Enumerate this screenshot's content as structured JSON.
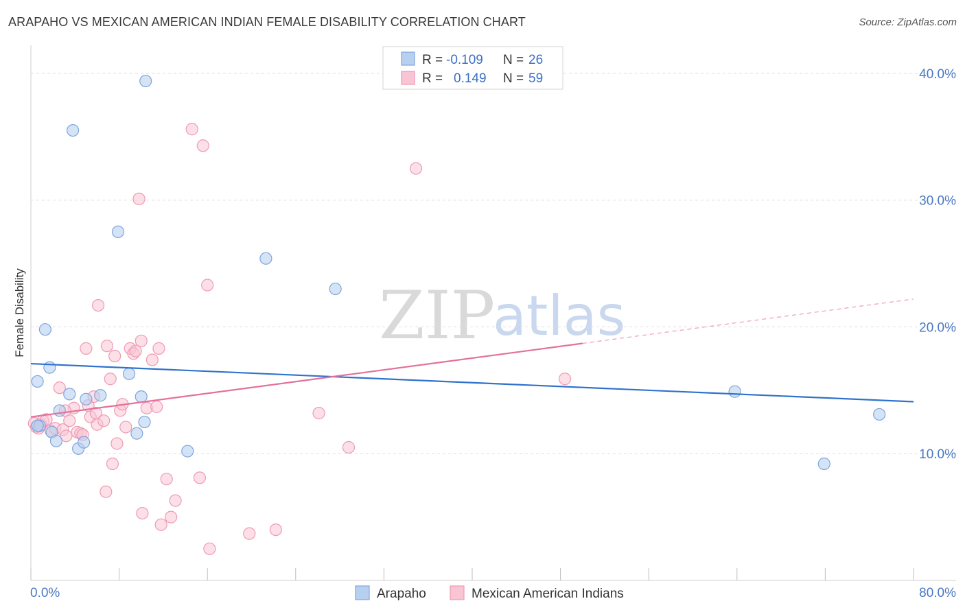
{
  "title": "ARAPAHO VS MEXICAN AMERICAN INDIAN FEMALE DISABILITY CORRELATION CHART",
  "source": "Source: ZipAtlas.com",
  "watermark": {
    "zip": "ZIP",
    "atlas": "atlas"
  },
  "colors": {
    "arapaho_fill": "#b8d0f0",
    "arapaho_stroke": "#7fa5dc",
    "arapaho_line": "#2f72cc",
    "mexican_fill": "#f9c4d4",
    "mexican_stroke": "#ee9ab5",
    "mexican_line": "#e4709a",
    "grid": "#dedede",
    "tick_text": "#4a78c2"
  },
  "legend": {
    "rows": [
      {
        "r_label": "R =",
        "r_value": "-0.109",
        "n_label": "N =",
        "n_value": "26"
      },
      {
        "r_label": "R =",
        "r_value": "0.149",
        "n_label": "N =",
        "n_value": "59"
      }
    ]
  },
  "chart_data": {
    "type": "scatter",
    "title": "ARAPAHO VS MEXICAN AMERICAN INDIAN FEMALE DISABILITY CORRELATION CHART",
    "xlabel": "",
    "ylabel": "Female Disability",
    "xlim": [
      0,
      80
    ],
    "ylim": [
      0,
      42
    ],
    "x_tick_labels": [
      "0.0%",
      "80.0%"
    ],
    "y_ticks": [
      10,
      20,
      30,
      40
    ],
    "y_tick_labels": [
      "10.0%",
      "20.0%",
      "30.0%",
      "40.0%"
    ],
    "grid": true,
    "legend_position": "top-center",
    "series": [
      {
        "name": "Arapaho",
        "r": -0.109,
        "n": 26,
        "points": [
          [
            0.6,
            15.7
          ],
          [
            0.8,
            12.2
          ],
          [
            1.3,
            19.8
          ],
          [
            1.7,
            16.8
          ],
          [
            1.9,
            11.7
          ],
          [
            2.3,
            11.0
          ],
          [
            2.6,
            13.4
          ],
          [
            3.5,
            14.7
          ],
          [
            3.8,
            35.5
          ],
          [
            4.3,
            10.4
          ],
          [
            4.8,
            10.9
          ],
          [
            5.0,
            14.3
          ],
          [
            6.3,
            14.6
          ],
          [
            7.9,
            27.5
          ],
          [
            8.9,
            16.3
          ],
          [
            9.6,
            11.6
          ],
          [
            10.0,
            14.5
          ],
          [
            10.3,
            12.5
          ],
          [
            10.4,
            39.4
          ],
          [
            14.2,
            10.2
          ],
          [
            21.3,
            25.4
          ],
          [
            27.6,
            23.0
          ],
          [
            63.8,
            14.9
          ],
          [
            71.9,
            9.2
          ],
          [
            76.9,
            13.1
          ],
          [
            0.6,
            12.2
          ]
        ],
        "trend": {
          "x": [
            0,
            80
          ],
          "y": [
            17.1,
            14.1
          ]
        }
      },
      {
        "name": "Mexican American Indians",
        "r": 0.149,
        "n": 59,
        "points": [
          [
            0.3,
            12.4
          ],
          [
            0.5,
            12.1
          ],
          [
            0.7,
            12.0
          ],
          [
            0.9,
            12.3
          ],
          [
            1.1,
            12.6
          ],
          [
            1.4,
            12.7
          ],
          [
            1.8,
            11.8
          ],
          [
            2.2,
            12.0
          ],
          [
            2.6,
            15.2
          ],
          [
            2.9,
            11.9
          ],
          [
            3.2,
            11.4
          ],
          [
            3.5,
            12.6
          ],
          [
            3.9,
            13.6
          ],
          [
            4.2,
            11.7
          ],
          [
            4.5,
            11.6
          ],
          [
            5.0,
            18.3
          ],
          [
            5.2,
            13.8
          ],
          [
            5.4,
            12.9
          ],
          [
            5.7,
            14.5
          ],
          [
            5.9,
            13.2
          ],
          [
            6.0,
            12.3
          ],
          [
            6.1,
            21.7
          ],
          [
            6.6,
            12.6
          ],
          [
            6.8,
            7.0
          ],
          [
            6.9,
            18.5
          ],
          [
            7.2,
            15.9
          ],
          [
            7.4,
            9.2
          ],
          [
            7.6,
            17.7
          ],
          [
            7.8,
            10.8
          ],
          [
            8.1,
            13.4
          ],
          [
            8.3,
            13.9
          ],
          [
            8.6,
            12.1
          ],
          [
            9.0,
            18.3
          ],
          [
            9.3,
            17.9
          ],
          [
            9.5,
            18.1
          ],
          [
            9.8,
            30.1
          ],
          [
            10.0,
            18.9
          ],
          [
            10.1,
            5.3
          ],
          [
            10.5,
            13.6
          ],
          [
            11.0,
            17.4
          ],
          [
            11.4,
            13.7
          ],
          [
            11.6,
            18.3
          ],
          [
            11.8,
            4.4
          ],
          [
            12.3,
            8.0
          ],
          [
            12.7,
            5.0
          ],
          [
            13.1,
            6.3
          ],
          [
            14.6,
            35.6
          ],
          [
            15.6,
            34.3
          ],
          [
            15.3,
            8.1
          ],
          [
            16.0,
            23.3
          ],
          [
            16.2,
            2.5
          ],
          [
            19.8,
            3.7
          ],
          [
            22.2,
            4.0
          ],
          [
            26.1,
            13.2
          ],
          [
            28.8,
            10.5
          ],
          [
            34.9,
            32.5
          ],
          [
            48.4,
            15.9
          ],
          [
            4.7,
            11.5
          ],
          [
            3.1,
            13.4
          ]
        ],
        "trend": {
          "x": [
            0,
            50
          ],
          "y": [
            12.9,
            18.7
          ]
        },
        "trend_dashed": {
          "x": [
            50,
            80
          ],
          "y": [
            18.7,
            22.2
          ]
        }
      }
    ]
  }
}
